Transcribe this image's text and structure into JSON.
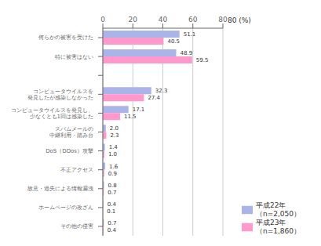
{
  "chart_data": {
    "type": "bar",
    "orientation": "horizontal",
    "categories": [
      "何らかの被害を受けた",
      "特に被害はない",
      null,
      "コンピュータウイルスを\n発見したが感染しなかった",
      "コンピュータウイルスを発見し、\n少なくとも1回は感染した",
      "スパムメールの\n中継利用・踏み台",
      "DoS（DDos）攻撃",
      "不正アクセス",
      "故意・過失による情報漏洩",
      "ホームページの改ざん",
      "その他の侵害"
    ],
    "series": [
      {
        "name": "平成22年\n（n=2,050）",
        "color": "#aab4e8",
        "values": [
          51.1,
          48.9,
          null,
          32.3,
          17.1,
          2.0,
          1.4,
          1.6,
          0.8,
          0.4,
          0.7
        ],
        "value_labels": [
          "51.1",
          "48.9",
          null,
          "32.3",
          "17.1",
          "2.0",
          "1.4",
          "1.6",
          "0.8",
          "0.4",
          "0.7"
        ]
      },
      {
        "name": "平成23年\n（n=1,860）",
        "color": "#ff99cc",
        "values": [
          40.5,
          59.5,
          null,
          27.4,
          11.5,
          2.3,
          1.0,
          0.9,
          0.7,
          0.1,
          0.4
        ],
        "value_labels": [
          "40.5",
          "59.5",
          null,
          "27.4",
          "11.5",
          "2.3",
          "1.0",
          "0.9",
          "0.7",
          "0.1",
          "0.4"
        ]
      }
    ],
    "xlim": [
      0,
      80
    ],
    "xticks": [
      0,
      20,
      40,
      60,
      80
    ],
    "grid": true,
    "legend": "lower right",
    "data_labels": true,
    "annotations": [
      "80 (%)"
    ]
  }
}
